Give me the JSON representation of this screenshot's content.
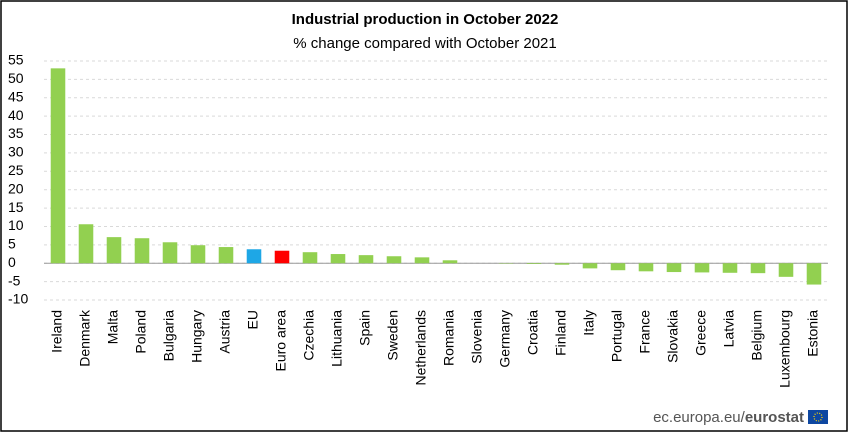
{
  "chart_data": {
    "type": "bar",
    "title": "Industrial production in October 2022",
    "subtitle": "% change compared with October 2021",
    "categories": [
      "Ireland",
      "Denmark",
      "Malta",
      "Poland",
      "Bulgaria",
      "Hungary",
      "Austria",
      "EU",
      "Euro area",
      "Czechia",
      "Lithuania",
      "Spain",
      "Sweden",
      "Netherlands",
      "Romania",
      "Slovenia",
      "Germany",
      "Croatia",
      "Finland",
      "Italy",
      "Portugal",
      "France",
      "Slovakia",
      "Greece",
      "Latvia",
      "Belgium",
      "Luxembourg",
      "Estonia"
    ],
    "values": [
      53.0,
      10.6,
      7.1,
      6.8,
      5.7,
      4.9,
      4.4,
      3.8,
      3.4,
      3.0,
      2.5,
      2.2,
      1.9,
      1.6,
      0.8,
      0.0,
      -0.1,
      -0.2,
      -0.4,
      -1.4,
      -1.9,
      -2.2,
      -2.4,
      -2.5,
      -2.6,
      -2.7,
      -3.7,
      -5.8
    ],
    "colors": [
      "#92d050",
      "#92d050",
      "#92d050",
      "#92d050",
      "#92d050",
      "#92d050",
      "#92d050",
      "#1ea7e6",
      "#ff0000",
      "#92d050",
      "#92d050",
      "#92d050",
      "#92d050",
      "#92d050",
      "#92d050",
      "#92d050",
      "#92d050",
      "#92d050",
      "#92d050",
      "#92d050",
      "#92d050",
      "#92d050",
      "#92d050",
      "#92d050",
      "#92d050",
      "#92d050",
      "#92d050",
      "#92d050"
    ],
    "ylim": [
      -10,
      55
    ],
    "yticks": [
      -10,
      -5,
      0,
      5,
      10,
      15,
      20,
      25,
      30,
      35,
      40,
      45,
      50,
      55
    ],
    "grid": true,
    "source": {
      "site": "ec.europa.eu/",
      "brand": "eurostat"
    }
  }
}
